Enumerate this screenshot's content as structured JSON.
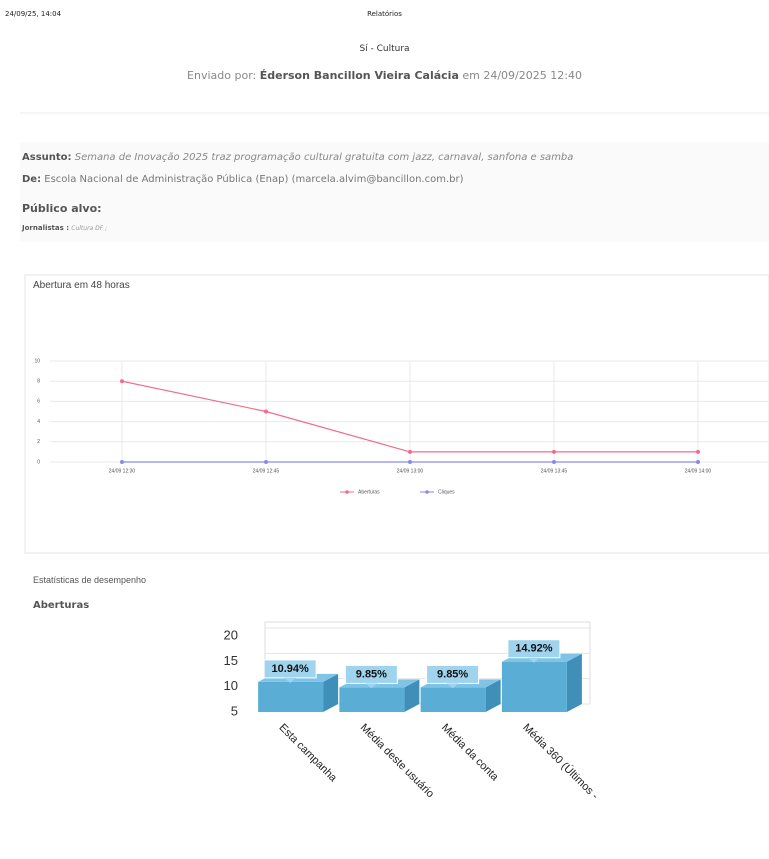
{
  "header": {
    "datetime": "24/09/25, 14:04",
    "section": "Relatórios"
  },
  "title": "Sí - Cultura",
  "sender": {
    "prefix": "Enviado por:",
    "name": "Éderson Bancillon Vieira Calácia",
    "suffix": "em 24/09/2025 12:40"
  },
  "subject": {
    "label": "Assunto:",
    "text": "Semana de Inovação 2025 traz programação cultural gratuita com jazz, carnaval, sanfona e samba"
  },
  "from": {
    "label": "De:",
    "text": "Escola Nacional de Administração Pública (Enap) (marcela.alvim@bancillon.com.br)"
  },
  "audience": {
    "label": "Público alvo:",
    "group": "Jornalistas :",
    "list": "Cultura DF ;"
  },
  "stats_heading": "Estatísticas de desempenho",
  "chart_data": [
    {
      "type": "line",
      "title": "Abertura em 48 horas",
      "categories": [
        "24/09 12:30",
        "24/09 12:45",
        "24/09 13:00",
        "24/09 13:45",
        "24/09 14:00"
      ],
      "series": [
        {
          "name": "Aberturas",
          "color": "#f06c8c",
          "values": [
            8,
            5,
            1,
            1,
            1
          ]
        },
        {
          "name": "Cliques",
          "color": "#8a8ae6",
          "values": [
            0,
            0,
            0,
            0,
            0
          ]
        }
      ],
      "ylim": [
        0,
        10
      ],
      "yticks": [
        0,
        2,
        4,
        6,
        8,
        10
      ],
      "grid": true
    },
    {
      "type": "bar3d",
      "title": "Aberturas",
      "categories": [
        "Esta campanha",
        "Média deste usuário",
        "Média da conta",
        "Média 360 (Últimos -"
      ],
      "values": [
        10.94,
        9.85,
        9.85,
        14.92
      ],
      "value_labels": [
        "10.94%",
        "9.85%",
        "9.85%",
        "14.92%"
      ],
      "color": "#5aaed6",
      "ylim": [
        5,
        20
      ],
      "yticks": [
        5,
        10,
        15,
        20
      ],
      "grid": true
    }
  ]
}
